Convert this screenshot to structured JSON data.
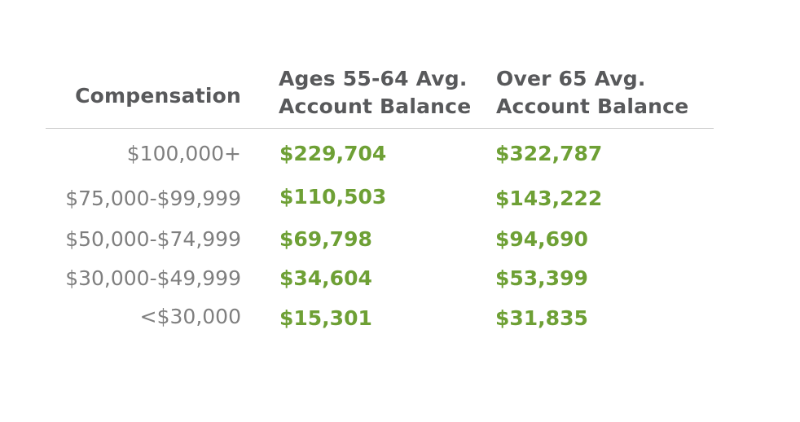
{
  "chart_data": {
    "type": "table",
    "columns": [
      "Compensation",
      "Ages 55-64 Avg. Account Balance",
      "Over 65 Avg. Account Balance"
    ],
    "header_lines": {
      "compensation": [
        "Compensation"
      ],
      "ages_55_64": [
        "Ages 55-64 Avg.",
        "Account Balance"
      ],
      "over_65": [
        "Over 65 Avg.",
        "Account Balance"
      ]
    },
    "rows": [
      {
        "compensation": "$100,000+",
        "ages_55_64": "$229,704",
        "over_65": "$322,787"
      },
      {
        "compensation": "$75,000-$99,999",
        "ages_55_64": "$110,503",
        "over_65": "$143,222"
      },
      {
        "compensation": "$50,000-$74,999",
        "ages_55_64": "$69,798",
        "over_65": "$94,690"
      },
      {
        "compensation": "$30,000-$49,999",
        "ages_55_64": "$34,604",
        "over_65": "$53,399"
      },
      {
        "compensation": "<$30,000",
        "ages_55_64": "$15,301",
        "over_65": "$31,835"
      }
    ],
    "colors": {
      "header_text": "#58595b",
      "label_text": "#7f7f7f",
      "value_text": "#6ea035",
      "rule": "#c8c8c8"
    }
  }
}
